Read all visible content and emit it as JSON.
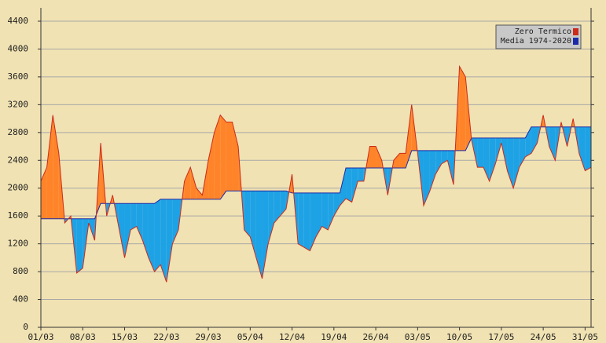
{
  "chart_data": {
    "type": "line",
    "categories": [
      "01/03",
      null,
      null,
      null,
      null,
      null,
      null,
      "08/03",
      null,
      null,
      null,
      null,
      null,
      null,
      "15/03",
      null,
      null,
      null,
      null,
      null,
      null,
      "22/03",
      null,
      null,
      null,
      null,
      null,
      null,
      "29/03",
      null,
      null,
      null,
      null,
      null,
      null,
      "05/04",
      null,
      null,
      null,
      null,
      null,
      null,
      "12/04",
      null,
      null,
      null,
      null,
      null,
      null,
      "19/04",
      null,
      null,
      null,
      null,
      null,
      null,
      "26/04",
      null,
      null,
      null,
      null,
      null,
      null,
      "03/05",
      null,
      null,
      null,
      null,
      null,
      null,
      "10/05",
      null,
      null,
      null,
      null,
      null,
      null,
      "17/05",
      null,
      null,
      null,
      null,
      null,
      null,
      "24/05",
      null,
      null,
      null,
      null,
      null,
      null,
      "31/05",
      null
    ],
    "series": [
      {
        "name": "Zero Termico",
        "color": "#cc2a1a",
        "values": [
          2100,
          2300,
          3050,
          2500,
          1500,
          1600,
          780,
          850,
          1500,
          1250,
          2650,
          1600,
          1900,
          1450,
          1000,
          1400,
          1450,
          1250,
          1000,
          800,
          900,
          650,
          1200,
          1400,
          2100,
          2300,
          2000,
          1900,
          2400,
          2800,
          3050,
          2950,
          2950,
          2600,
          1400,
          1300,
          1000,
          700,
          1200,
          1500,
          1600,
          1700,
          2200,
          1200,
          1150,
          1100,
          1300,
          1450,
          1400,
          1600,
          1750,
          1850,
          1800,
          2100,
          2100,
          2600,
          2600,
          2400,
          1900,
          2400,
          2500,
          2500,
          3200,
          2500,
          1750,
          1950,
          2200,
          2350,
          2400,
          2050,
          3750,
          3600,
          2700,
          2300,
          2300,
          2100,
          2350,
          2650,
          2250,
          2000,
          2300,
          2450,
          2500,
          2650,
          3050,
          2600,
          2400,
          2950,
          2600,
          3000,
          2500,
          2250,
          2300
        ]
      },
      {
        "name": "Media 1974-2020",
        "color": "#1a2aa8",
        "values": [
          1560,
          1560,
          1560,
          1560,
          1560,
          1560,
          1560,
          1560,
          1560,
          1560,
          1780,
          1780,
          1780,
          1780,
          1780,
          1780,
          1780,
          1780,
          1780,
          1780,
          1840,
          1840,
          1840,
          1840,
          1840,
          1840,
          1840,
          1840,
          1840,
          1840,
          1840,
          1960,
          1960,
          1960,
          1960,
          1960,
          1960,
          1960,
          1960,
          1960,
          1960,
          1960,
          1930,
          1930,
          1930,
          1930,
          1930,
          1930,
          1930,
          1930,
          1930,
          2290,
          2290,
          2290,
          2290,
          2290,
          2290,
          2290,
          2290,
          2290,
          2290,
          2290,
          2540,
          2540,
          2540,
          2540,
          2540,
          2540,
          2540,
          2540,
          2540,
          2540,
          2720,
          2720,
          2720,
          2720,
          2720,
          2720,
          2720,
          2720,
          2720,
          2720,
          2880,
          2880,
          2880,
          2880,
          2880,
          2880,
          2880,
          2880,
          2880,
          2880,
          2880
        ]
      }
    ],
    "above_color": "#ff8429",
    "below_color": "#1ea2e6",
    "ylim": [
      0,
      4400
    ],
    "yticks": [
      0,
      400,
      800,
      1200,
      1600,
      2000,
      2400,
      2800,
      3200,
      3600,
      4000,
      4400
    ],
    "grid": true,
    "legend": "top-right"
  }
}
